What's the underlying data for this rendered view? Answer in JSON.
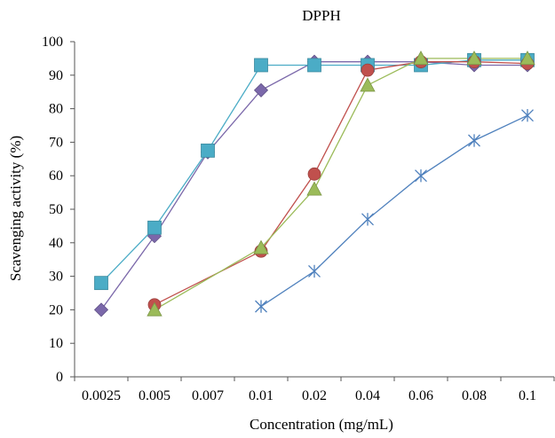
{
  "chart_data": {
    "type": "line",
    "title": "DPPH",
    "xlabel": "Concentration (mg/mL)",
    "ylabel": "Scavenging activity (%)",
    "categories": [
      "0.0025",
      "0.005",
      "0.007",
      "0.01",
      "0.02",
      "0.04",
      "0.06",
      "0.08",
      "0.1"
    ],
    "ylim": [
      0,
      100
    ],
    "yticks": [
      0,
      10,
      20,
      30,
      40,
      50,
      60,
      70,
      80,
      90,
      100
    ],
    "grid": false,
    "legend": "none",
    "series": [
      {
        "color": "#7b68aa",
        "marker": "diamond",
        "values": [
          20,
          42,
          67,
          85.5,
          94,
          94,
          94,
          93,
          93
        ]
      },
      {
        "color": "#4bacc6",
        "marker": "square",
        "values": [
          28,
          44.5,
          67.5,
          93,
          93,
          93,
          93,
          94.5,
          94.5
        ]
      },
      {
        "color": "#c0504d",
        "marker": "circle",
        "values": [
          null,
          21.5,
          null,
          37.5,
          60.5,
          91.5,
          94,
          94,
          93.5
        ]
      },
      {
        "color": "#9bbb59",
        "marker": "triangle",
        "values": [
          null,
          20,
          null,
          38.5,
          56,
          87,
          95,
          95,
          95
        ]
      },
      {
        "color": "#4f81bd",
        "marker": "asterisk",
        "values": [
          null,
          null,
          null,
          21,
          31.5,
          47,
          60,
          70.5,
          78
        ]
      }
    ]
  }
}
